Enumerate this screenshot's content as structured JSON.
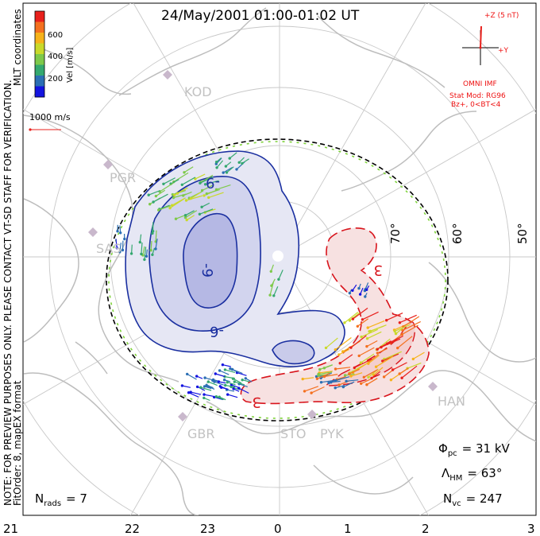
{
  "title": "24/May/2001 01:00-01:02 UT",
  "colorbar": {
    "label": "Vel [m/s]",
    "ticks": [
      "600",
      "400",
      "200"
    ],
    "colors": [
      "#e8201c",
      "#f4701f",
      "#f6b21a",
      "#c9d92a",
      "#7ec94a",
      "#34a86f",
      "#2b6fb4",
      "#1414e0"
    ]
  },
  "coordinates_label": "MLT coordinates",
  "preview_note": "NOTE: FOR PREVIEW PURPOSES ONLY. PLEASE CONTACT VT-SD STAFF FOR VERIFICATION.",
  "fit_note": "FitOrder: 8, mapEX format",
  "ref_vector_label": "1000 m/s",
  "imf": {
    "z_label": "+Z (5 nT)",
    "y_label": "+Y",
    "label": "OMNI IMF",
    "stat_mod": "Stat Mod: RG96",
    "condition": "Bz+, 0<BT<4"
  },
  "stations": [
    "KOD",
    "PGR",
    "SAS",
    "GBR",
    "STO",
    "PYK",
    "HAN"
  ],
  "latitude_labels": [
    "70°",
    "60°",
    "50°"
  ],
  "contours": {
    "negative_labels": [
      "-9",
      "-6",
      "-9"
    ],
    "positive_labels": [
      "3",
      "3"
    ],
    "negative_color": "#1a2fa0",
    "positive_color": "#d8141c"
  },
  "stats": {
    "phi_pc_sym": "Φ",
    "phi_pc_sub": "pc",
    "phi_pc_value": "= 31 kV",
    "lambda_sym": "Λ",
    "lambda_sub": "HM",
    "lambda_value": "= 63°",
    "nvc_sym": "N",
    "nvc_sub": "vc",
    "nvc_value": "= 247",
    "nrads_sym": "N",
    "nrads_sub": "rads",
    "nrads_value": "= 7"
  },
  "mlt_axis": [
    "21",
    "22",
    "23",
    "0",
    "1",
    "2",
    "3"
  ]
}
